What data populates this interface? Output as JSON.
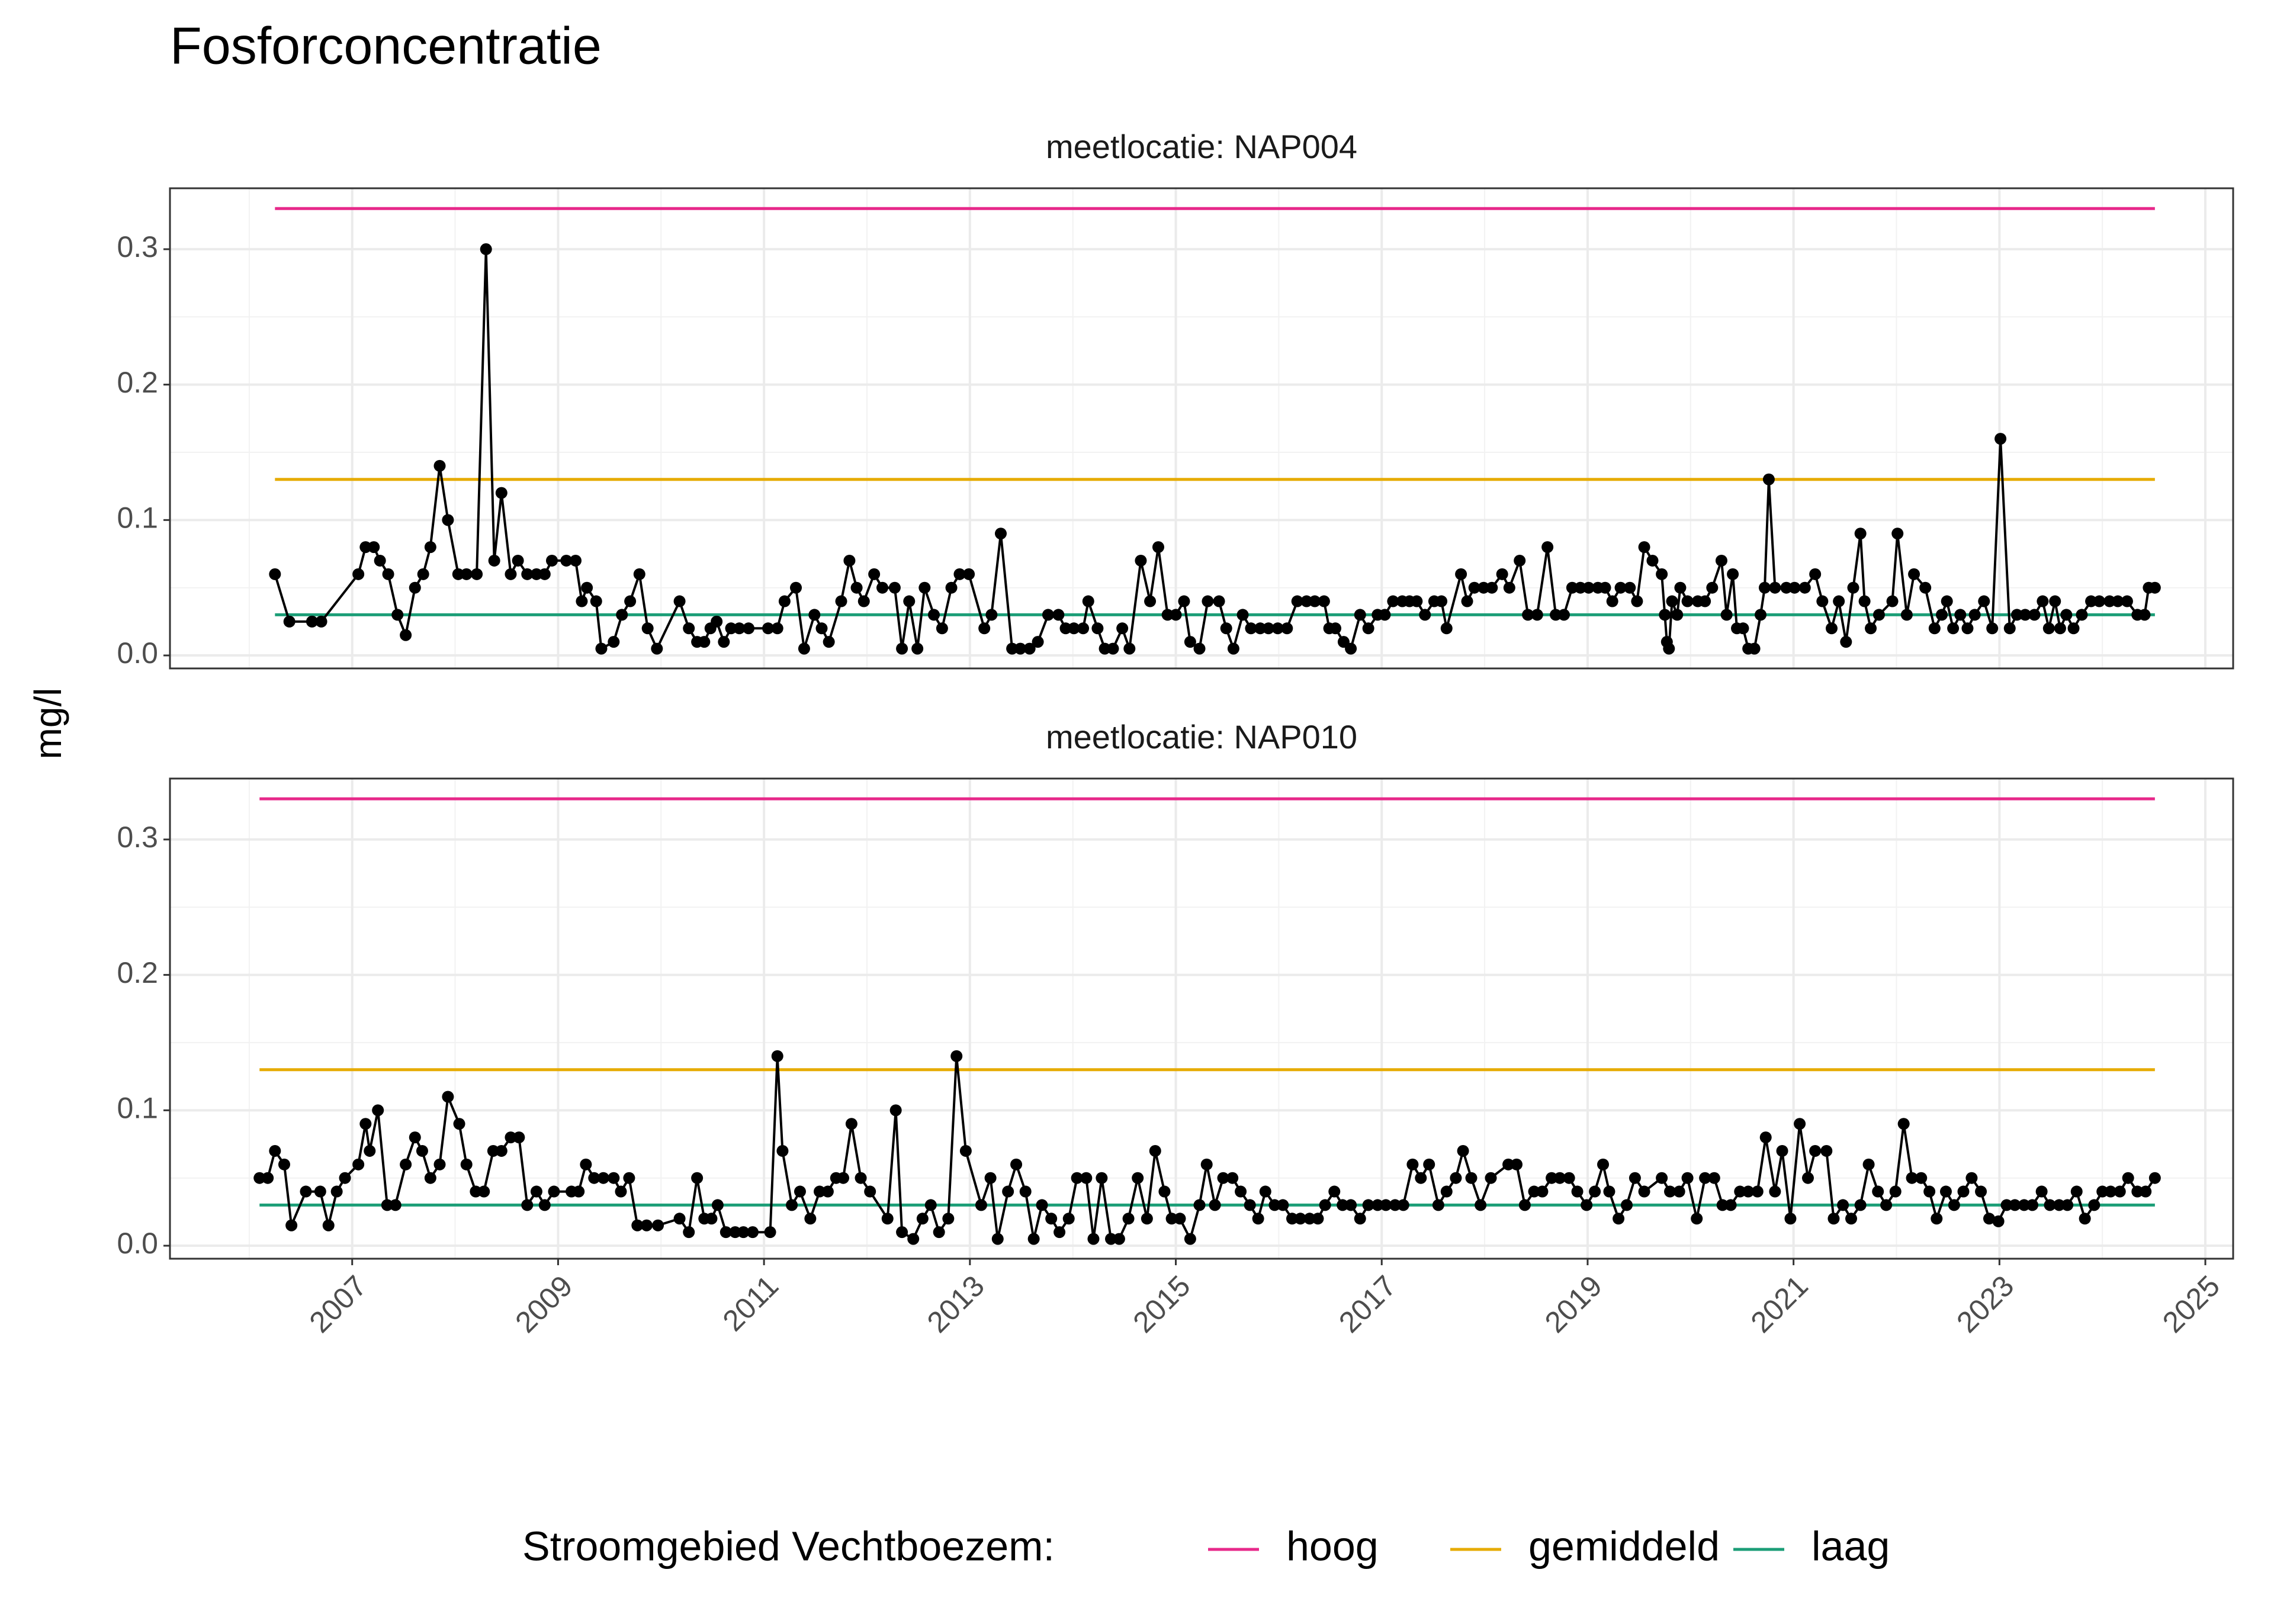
{
  "title": "Fosforconcentratie",
  "y_label": "mg/l",
  "legend_title": "Stroomgebied Vechtboezem:",
  "legend_position": "bottom",
  "thresholds": [
    {
      "name": "hoog",
      "color": "#e7298a",
      "value": 0.33
    },
    {
      "name": "gemiddeld",
      "color": "#e6ab02",
      "value": 0.13
    },
    {
      "name": "laag",
      "color": "#1b9e77",
      "value": 0.03
    }
  ],
  "chart_data": [
    {
      "type": "line",
      "facet_label": "meetlocatie: NAP004",
      "color": "#000000",
      "threshold_x": [
        2006.25,
        2024.51
      ],
      "xlim": [
        2005.23,
        2025.27
      ],
      "xticks": [
        2007,
        2009,
        2011,
        2013,
        2015,
        2017,
        2019,
        2021,
        2023,
        2025
      ],
      "xminor": [
        2006,
        2008,
        2010,
        2012,
        2014,
        2016,
        2018,
        2020,
        2022,
        2024
      ],
      "ylim": [
        -0.0096,
        0.345
      ],
      "yticks": [
        {
          "value": 0,
          "label": "0.0"
        },
        0.1,
        0.2,
        0.3
      ],
      "yminor": [
        0.05,
        0.15,
        0.25
      ],
      "grid": true,
      "x": [
        2006.25,
        2006.39,
        2006.61,
        2006.7,
        2007.06,
        2007.13,
        2007.21,
        2007.27,
        2007.35,
        2007.44,
        2007.52,
        2007.61,
        2007.69,
        2007.76,
        2007.85,
        2007.93,
        2008.03,
        2008.11,
        2008.21,
        2008.3,
        2008.38,
        2008.45,
        2008.54,
        2008.61,
        2008.7,
        2008.79,
        2008.87,
        2008.94,
        2009.08,
        2009.17,
        2009.23,
        2009.28,
        2009.37,
        2009.42,
        2009.54,
        2009.62,
        2009.7,
        2009.79,
        2009.87,
        2009.96,
        2010.18,
        2010.27,
        2010.35,
        2010.42,
        2010.48,
        2010.54,
        2010.61,
        2010.68,
        2010.76,
        2010.85,
        2011.04,
        2011.13,
        2011.2,
        2011.31,
        2011.39,
        2011.49,
        2011.56,
        2011.63,
        2011.75,
        2011.83,
        2011.9,
        2011.97,
        2012.07,
        2012.15,
        2012.27,
        2012.34,
        2012.41,
        2012.49,
        2012.56,
        2012.65,
        2012.73,
        2012.82,
        2012.9,
        2012.99,
        2013.14,
        2013.21,
        2013.3,
        2013.41,
        2013.49,
        2013.58,
        2013.66,
        2013.76,
        2013.86,
        2013.93,
        2014.01,
        2014.1,
        2014.15,
        2014.24,
        2014.31,
        2014.39,
        2014.48,
        2014.55,
        2014.66,
        2014.75,
        2014.83,
        2014.92,
        2015.0,
        2015.08,
        2015.14,
        2015.23,
        2015.31,
        2015.42,
        2015.49,
        2015.56,
        2015.65,
        2015.73,
        2015.82,
        2015.9,
        2015.99,
        2016.08,
        2016.18,
        2016.27,
        2016.35,
        2016.44,
        2016.49,
        2016.55,
        2016.63,
        2016.7,
        2016.79,
        2016.87,
        2016.96,
        2017.03,
        2017.11,
        2017.2,
        2017.27,
        2017.34,
        2017.42,
        2017.51,
        2017.58,
        2017.63,
        2017.77,
        2017.83,
        2017.9,
        2017.99,
        2018.07,
        2018.17,
        2018.24,
        2018.34,
        2018.42,
        2018.51,
        2018.61,
        2018.69,
        2018.77,
        2018.85,
        2018.93,
        2019.01,
        2019.1,
        2019.17,
        2019.24,
        2019.32,
        2019.41,
        2019.48,
        2019.55,
        2019.63,
        2019.72,
        2019.75,
        2019.77,
        2019.79,
        2019.82,
        2019.87,
        2019.9,
        2019.97,
        2020.07,
        2020.14,
        2020.21,
        2020.3,
        2020.35,
        2020.41,
        2020.45,
        2020.51,
        2020.56,
        2020.62,
        2020.68,
        2020.72,
        2020.76,
        2020.82,
        2020.93,
        2021.01,
        2021.11,
        2021.21,
        2021.28,
        2021.37,
        2021.44,
        2021.51,
        2021.58,
        2021.65,
        2021.69,
        2021.75,
        2021.83,
        2021.96,
        2022.01,
        2022.1,
        2022.17,
        2022.28,
        2022.37,
        2022.44,
        2022.49,
        2022.55,
        2022.62,
        2022.69,
        2022.76,
        2022.85,
        2022.93,
        2023.01,
        2023.1,
        2023.17,
        2023.25,
        2023.34,
        2023.42,
        2023.48,
        2023.54,
        2023.59,
        2023.65,
        2023.72,
        2023.8,
        2023.89,
        2023.97,
        2024.07,
        2024.15,
        2024.24,
        2024.34,
        2024.41,
        2024.45,
        2024.51
      ],
      "values": [
        0.06,
        0.025,
        0.025,
        0.025,
        0.06,
        0.08,
        0.08,
        0.07,
        0.06,
        0.03,
        0.015,
        0.05,
        0.06,
        0.08,
        0.14,
        0.1,
        0.06,
        0.06,
        0.06,
        0.3,
        0.07,
        0.12,
        0.06,
        0.07,
        0.06,
        0.06,
        0.06,
        0.07,
        0.07,
        0.07,
        0.04,
        0.05,
        0.04,
        0.005,
        0.01,
        0.03,
        0.04,
        0.06,
        0.02,
        0.005,
        0.04,
        0.02,
        0.01,
        0.01,
        0.02,
        0.025,
        0.01,
        0.02,
        0.02,
        0.02,
        0.02,
        0.02,
        0.04,
        0.05,
        0.005,
        0.03,
        0.02,
        0.01,
        0.04,
        0.07,
        0.05,
        0.04,
        0.06,
        0.05,
        0.05,
        0.005,
        0.04,
        0.005,
        0.05,
        0.03,
        0.02,
        0.05,
        0.06,
        0.06,
        0.02,
        0.03,
        0.09,
        0.005,
        0.005,
        0.005,
        0.01,
        0.03,
        0.03,
        0.02,
        0.02,
        0.02,
        0.04,
        0.02,
        0.005,
        0.005,
        0.02,
        0.005,
        0.07,
        0.04,
        0.08,
        0.03,
        0.03,
        0.04,
        0.01,
        0.005,
        0.04,
        0.04,
        0.02,
        0.005,
        0.03,
        0.02,
        0.02,
        0.02,
        0.02,
        0.02,
        0.04,
        0.04,
        0.04,
        0.04,
        0.02,
        0.02,
        0.01,
        0.005,
        0.03,
        0.02,
        0.03,
        0.03,
        0.04,
        0.04,
        0.04,
        0.04,
        0.03,
        0.04,
        0.04,
        0.02,
        0.06,
        0.04,
        0.05,
        0.05,
        0.05,
        0.06,
        0.05,
        0.07,
        0.03,
        0.03,
        0.08,
        0.03,
        0.03,
        0.05,
        0.05,
        0.05,
        0.05,
        0.05,
        0.04,
        0.05,
        0.05,
        0.04,
        0.08,
        0.07,
        0.06,
        0.03,
        0.01,
        0.005,
        0.04,
        0.03,
        0.05,
        0.04,
        0.04,
        0.04,
        0.05,
        0.07,
        0.03,
        0.06,
        0.02,
        0.02,
        0.005,
        0.005,
        0.03,
        0.05,
        0.13,
        0.05,
        0.05,
        0.05,
        0.05,
        0.06,
        0.04,
        0.02,
        0.04,
        0.01,
        0.05,
        0.09,
        0.04,
        0.02,
        0.03,
        0.04,
        0.09,
        0.03,
        0.06,
        0.05,
        0.02,
        0.03,
        0.04,
        0.02,
        0.03,
        0.02,
        0.03,
        0.04,
        0.02,
        0.16,
        0.02,
        0.03,
        0.03,
        0.03,
        0.04,
        0.02,
        0.04,
        0.02,
        0.03,
        0.02,
        0.03,
        0.04,
        0.04,
        0.04,
        0.04,
        0.04,
        0.03,
        0.03,
        0.05,
        0.05
      ]
    },
    {
      "type": "line",
      "facet_label": "meetlocatie: NAP010",
      "color": "#000000",
      "threshold_x": [
        2006.1,
        2024.51
      ],
      "xlim": [
        2005.23,
        2025.27
      ],
      "xticks": [
        2007,
        2009,
        2011,
        2013,
        2015,
        2017,
        2019,
        2021,
        2023,
        2025
      ],
      "xminor": [
        2006,
        2008,
        2010,
        2012,
        2014,
        2016,
        2018,
        2020,
        2022,
        2024
      ],
      "ylim": [
        -0.0096,
        0.345
      ],
      "yticks": [
        {
          "value": 0,
          "label": "0.0"
        },
        0.1,
        0.2,
        0.3
      ],
      "yminor": [
        0.05,
        0.15,
        0.25
      ],
      "grid": true,
      "x": [
        2006.1,
        2006.18,
        2006.25,
        2006.34,
        2006.41,
        2006.55,
        2006.69,
        2006.77,
        2006.85,
        2006.93,
        2007.06,
        2007.13,
        2007.17,
        2007.25,
        2007.34,
        2007.42,
        2007.52,
        2007.61,
        2007.68,
        2007.76,
        2007.85,
        2007.93,
        2008.04,
        2008.11,
        2008.2,
        2008.28,
        2008.37,
        2008.45,
        2008.54,
        2008.62,
        2008.7,
        2008.79,
        2008.87,
        2008.96,
        2009.13,
        2009.2,
        2009.27,
        2009.35,
        2009.44,
        2009.54,
        2009.61,
        2009.69,
        2009.77,
        2009.86,
        2009.97,
        2010.18,
        2010.27,
        2010.35,
        2010.42,
        2010.49,
        2010.55,
        2010.63,
        2010.72,
        2010.8,
        2010.89,
        2011.06,
        2011.13,
        2011.18,
        2011.27,
        2011.35,
        2011.45,
        2011.54,
        2011.62,
        2011.7,
        2011.77,
        2011.85,
        2011.94,
        2012.03,
        2012.2,
        2012.28,
        2012.34,
        2012.45,
        2012.54,
        2012.62,
        2012.7,
        2012.79,
        2012.87,
        2012.96,
        2013.11,
        2013.2,
        2013.27,
        2013.37,
        2013.45,
        2013.54,
        2013.62,
        2013.7,
        2013.79,
        2013.87,
        2013.96,
        2014.04,
        2014.13,
        2014.2,
        2014.28,
        2014.37,
        2014.45,
        2014.54,
        2014.63,
        2014.72,
        2014.8,
        2014.89,
        2014.96,
        2015.04,
        2015.14,
        2015.23,
        2015.3,
        2015.38,
        2015.46,
        2015.55,
        2015.63,
        2015.72,
        2015.8,
        2015.87,
        2015.96,
        2016.04,
        2016.13,
        2016.21,
        2016.3,
        2016.38,
        2016.45,
        2016.54,
        2016.62,
        2016.7,
        2016.79,
        2016.87,
        2016.96,
        2017.04,
        2017.13,
        2017.21,
        2017.3,
        2017.38,
        2017.46,
        2017.55,
        2017.63,
        2017.72,
        2017.79,
        2017.87,
        2017.96,
        2018.06,
        2018.23,
        2018.31,
        2018.39,
        2018.48,
        2018.56,
        2018.65,
        2018.73,
        2018.82,
        2018.9,
        2018.99,
        2019.07,
        2019.15,
        2019.21,
        2019.3,
        2019.38,
        2019.46,
        2019.55,
        2019.72,
        2019.8,
        2019.89,
        2019.97,
        2020.06,
        2020.14,
        2020.23,
        2020.31,
        2020.39,
        2020.48,
        2020.56,
        2020.65,
        2020.73,
        2020.82,
        2020.89,
        2020.97,
        2021.06,
        2021.14,
        2021.21,
        2021.32,
        2021.39,
        2021.48,
        2021.56,
        2021.65,
        2021.73,
        2021.82,
        2021.9,
        2021.99,
        2022.07,
        2022.15,
        2022.24,
        2022.32,
        2022.39,
        2022.48,
        2022.56,
        2022.65,
        2022.73,
        2022.82,
        2022.9,
        2022.99,
        2023.07,
        2023.15,
        2023.24,
        2023.32,
        2023.41,
        2023.49,
        2023.58,
        2023.66,
        2023.75,
        2023.83,
        2023.92,
        2024.0,
        2024.08,
        2024.17,
        2024.25,
        2024.34,
        2024.42,
        2024.51
      ],
      "values": [
        0.05,
        0.05,
        0.07,
        0.06,
        0.015,
        0.04,
        0.04,
        0.015,
        0.04,
        0.05,
        0.06,
        0.09,
        0.07,
        0.1,
        0.03,
        0.03,
        0.06,
        0.08,
        0.07,
        0.05,
        0.06,
        0.11,
        0.09,
        0.06,
        0.04,
        0.04,
        0.07,
        0.07,
        0.08,
        0.08,
        0.03,
        0.04,
        0.03,
        0.04,
        0.04,
        0.04,
        0.06,
        0.05,
        0.05,
        0.05,
        0.04,
        0.05,
        0.015,
        0.015,
        0.015,
        0.02,
        0.01,
        0.05,
        0.02,
        0.02,
        0.03,
        0.01,
        0.01,
        0.01,
        0.01,
        0.01,
        0.14,
        0.07,
        0.03,
        0.04,
        0.02,
        0.04,
        0.04,
        0.05,
        0.05,
        0.09,
        0.05,
        0.04,
        0.02,
        0.1,
        0.01,
        0.005,
        0.02,
        0.03,
        0.01,
        0.02,
        0.14,
        0.07,
        0.03,
        0.05,
        0.005,
        0.04,
        0.06,
        0.04,
        0.005,
        0.03,
        0.02,
        0.01,
        0.02,
        0.05,
        0.05,
        0.005,
        0.05,
        0.005,
        0.005,
        0.02,
        0.05,
        0.02,
        0.07,
        0.04,
        0.02,
        0.02,
        0.005,
        0.03,
        0.06,
        0.03,
        0.05,
        0.05,
        0.04,
        0.03,
        0.02,
        0.04,
        0.03,
        0.03,
        0.02,
        0.02,
        0.02,
        0.02,
        0.03,
        0.04,
        0.03,
        0.03,
        0.02,
        0.03,
        0.03,
        0.03,
        0.03,
        0.03,
        0.06,
        0.05,
        0.06,
        0.03,
        0.04,
        0.05,
        0.07,
        0.05,
        0.03,
        0.05,
        0.06,
        0.06,
        0.03,
        0.04,
        0.04,
        0.05,
        0.05,
        0.05,
        0.04,
        0.03,
        0.04,
        0.06,
        0.04,
        0.02,
        0.03,
        0.05,
        0.04,
        0.05,
        0.04,
        0.04,
        0.05,
        0.02,
        0.05,
        0.05,
        0.03,
        0.03,
        0.04,
        0.04,
        0.04,
        0.08,
        0.04,
        0.07,
        0.02,
        0.09,
        0.05,
        0.07,
        0.07,
        0.02,
        0.03,
        0.02,
        0.03,
        0.06,
        0.04,
        0.03,
        0.04,
        0.09,
        0.05,
        0.05,
        0.04,
        0.02,
        0.04,
        0.03,
        0.04,
        0.05,
        0.04,
        0.02,
        0.018,
        0.03,
        0.03,
        0.03,
        0.03,
        0.04,
        0.03,
        0.03,
        0.03,
        0.04,
        0.02,
        0.03,
        0.04,
        0.04,
        0.04,
        0.05,
        0.04,
        0.04,
        0.05
      ]
    }
  ]
}
